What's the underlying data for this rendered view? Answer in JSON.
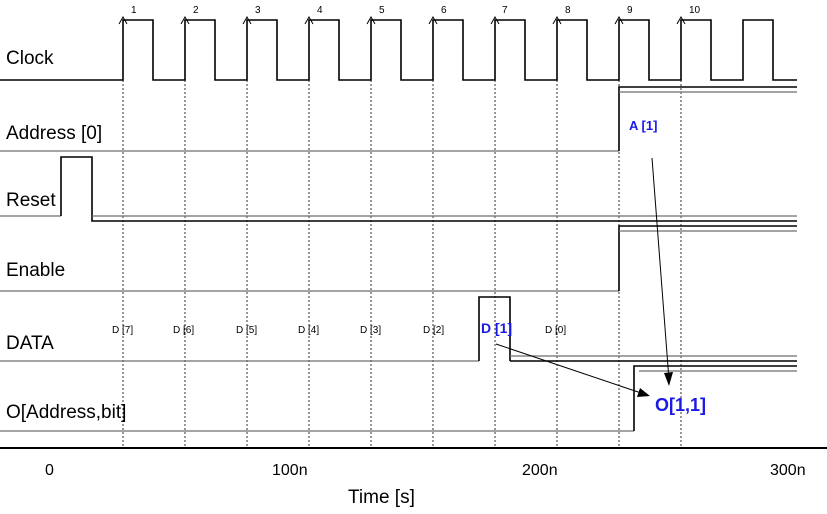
{
  "time_axis": {
    "title": "Time [s]",
    "ticks": [
      "0",
      "100n",
      "200n",
      "300n"
    ]
  },
  "signals": [
    {
      "id": "clock",
      "label": "Clock"
    },
    {
      "id": "address",
      "label": "Address [0]"
    },
    {
      "id": "reset",
      "label": "Reset"
    },
    {
      "id": "enable",
      "label": "Enable"
    },
    {
      "id": "data",
      "label": "DATA"
    },
    {
      "id": "output",
      "label": "O[Address,bit]"
    }
  ],
  "clock_edges": [
    "1",
    "2",
    "3",
    "4",
    "5",
    "6",
    "7",
    "8",
    "9",
    "10"
  ],
  "data_labels": [
    "D [7]",
    "D [6]",
    "D [5]",
    "D [4]",
    "D [3]",
    "D [2]",
    "D [1]",
    "D [0]"
  ],
  "annotations": {
    "address_value": "A [1]",
    "data_highlight": "D [1]",
    "output_value": "O[1,1]"
  },
  "colors": {
    "annotation": "#1a1ae6",
    "baseline": "#6e6e6e"
  }
}
